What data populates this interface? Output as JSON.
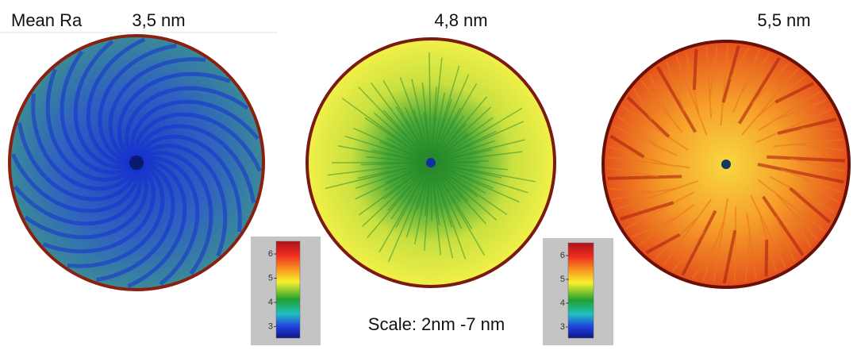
{
  "header": {
    "label": "Mean Ra"
  },
  "maps": [
    {
      "value_label": "3,5 nm"
    },
    {
      "value_label": "4,8 nm"
    },
    {
      "value_label": "5,5 nm"
    }
  ],
  "scale_note": "Scale: 2nm -7 nm",
  "colorbars": [
    {
      "ticks": [
        6,
        5,
        4,
        3
      ]
    },
    {
      "ticks": [
        6,
        5,
        4,
        3
      ]
    }
  ]
}
